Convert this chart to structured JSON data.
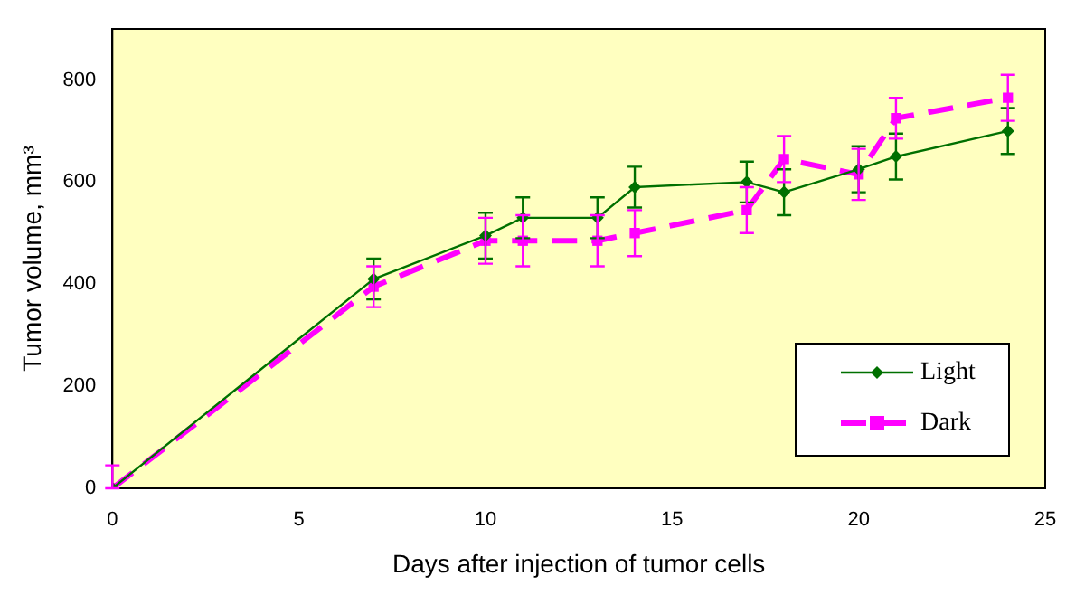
{
  "chart_data": {
    "type": "line",
    "xlabel": "Days after injection of tumor cells",
    "ylabel": "Tumor volume, mm³",
    "xlim": [
      0,
      25
    ],
    "xticks": [
      0,
      5,
      10,
      15,
      20,
      25
    ],
    "ylim": [
      0,
      900
    ],
    "yticks": [
      0,
      200,
      400,
      600,
      800
    ],
    "grid": false,
    "legend": "bottom right",
    "series": [
      {
        "name": "Light",
        "color": "#007000",
        "marker": "diamond",
        "line_style": "solid",
        "x": [
          0,
          7,
          10,
          11,
          13,
          14,
          17,
          18,
          20,
          21,
          24
        ],
        "values": [
          0,
          410,
          495,
          530,
          530,
          590,
          600,
          580,
          625,
          650,
          700
        ],
        "errors": [
          null,
          40,
          45,
          40,
          40,
          40,
          40,
          45,
          45,
          45,
          45
        ]
      },
      {
        "name": "Dark",
        "color": "#ff00ff",
        "marker": "square",
        "line_style": "dashed",
        "x": [
          0,
          7,
          10,
          11,
          13,
          14,
          17,
          18,
          20,
          21,
          24
        ],
        "values": [
          0,
          395,
          485,
          485,
          485,
          500,
          545,
          645,
          615,
          725,
          765
        ],
        "errors": [
          [
            0,
            45
          ],
          40,
          45,
          50,
          50,
          45,
          45,
          45,
          50,
          40,
          45
        ]
      }
    ]
  }
}
